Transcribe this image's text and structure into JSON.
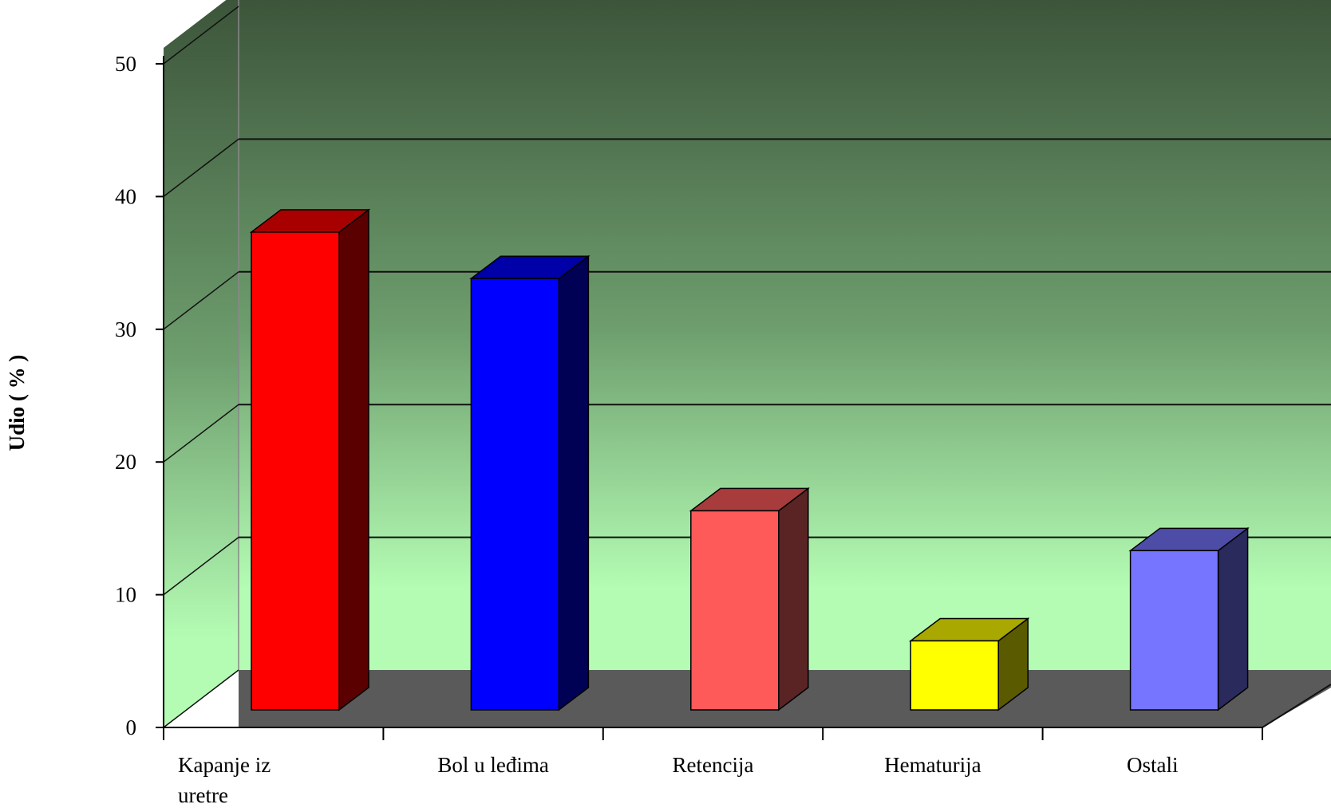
{
  "chart_data": {
    "type": "bar",
    "title": "",
    "xlabel": "",
    "ylabel": "Udio ( % )",
    "ylim": [
      0,
      50
    ],
    "yticks": [
      "0",
      "10",
      "20",
      "30",
      "40",
      "50"
    ],
    "categories": [
      [
        "Kapanje iz",
        "uretre"
      ],
      [
        "Bol u leđima"
      ],
      [
        "Retencija"
      ],
      [
        "Hematurija"
      ],
      [
        "Ostali"
      ]
    ],
    "values": [
      36,
      32.5,
      15,
      5.2,
      12
    ],
    "colors": [
      {
        "front": "#ff0000",
        "top": "#a80000",
        "side": "#5a0000"
      },
      {
        "front": "#0000ff",
        "top": "#0000a8",
        "side": "#000055"
      },
      {
        "front": "#ff5a5a",
        "top": "#a83c3c",
        "side": "#5a2424"
      },
      {
        "front": "#ffff00",
        "top": "#a8a800",
        "side": "#5a5a00"
      },
      {
        "front": "#7575ff",
        "top": "#4d4da8",
        "side": "#2a2a5c"
      }
    ],
    "grid": true,
    "style": "3d-column",
    "background": {
      "top": "#3b5339",
      "bottom": "#b4fcb4"
    },
    "floor_color": "#5a5a5a"
  }
}
